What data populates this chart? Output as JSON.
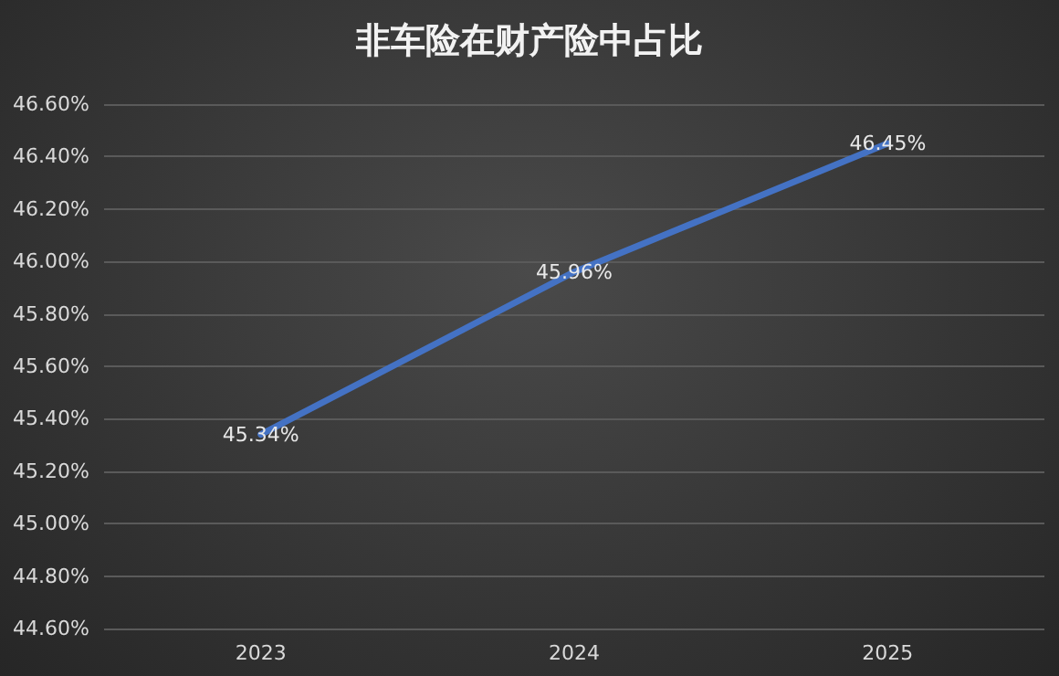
{
  "chart_data": {
    "type": "line",
    "title": "非车险在财产险中占比",
    "categories": [
      "2023",
      "2024",
      "2025"
    ],
    "series": [
      {
        "color": "#4472c4",
        "values": [
          45.34,
          45.96,
          46.45
        ],
        "value_labels": [
          "45.34%",
          "45.96%",
          "46.45%"
        ]
      }
    ],
    "ylim": [
      44.6,
      46.6
    ],
    "yticks": [
      {
        "value": 44.6,
        "label": "44.60%"
      },
      {
        "value": 44.8,
        "label": "44.80%"
      },
      {
        "value": 45.0,
        "label": "45.00%"
      },
      {
        "value": 45.2,
        "label": "45.20%"
      },
      {
        "value": 45.4,
        "label": "45.40%"
      },
      {
        "value": 45.6,
        "label": "45.60%"
      },
      {
        "value": 45.8,
        "label": "45.80%"
      },
      {
        "value": 46.0,
        "label": "46.00%"
      },
      {
        "value": 46.2,
        "label": "46.20%"
      },
      {
        "value": 46.4,
        "label": "46.40%"
      },
      {
        "value": 46.6,
        "label": "46.60%"
      }
    ],
    "grid": "y",
    "marker": "none",
    "line_style": "solid"
  }
}
